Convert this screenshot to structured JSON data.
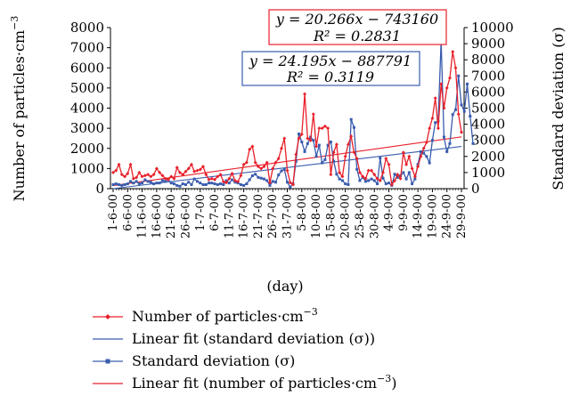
{
  "chart_data": {
    "type": "line",
    "xlabel": "(day)",
    "ylabel_left": "Number of particles·cm",
    "ylabel_left_sup": "−3",
    "ylabel_right": "Standard deviation (σ)",
    "ylim_left": [
      0,
      8000
    ],
    "ylim_right": [
      0,
      10000
    ],
    "yticks_left": [
      "0",
      "1000",
      "2000",
      "3000",
      "4000",
      "5000",
      "6000",
      "7000",
      "8000"
    ],
    "yticks_right": [
      "0",
      "1000",
      "2000",
      "3000",
      "4000",
      "5000",
      "6000",
      "7000",
      "8000",
      "9000",
      "10000"
    ],
    "xticks": [
      "1-6-00",
      "6-6-00",
      "11-6-00",
      "16-6-00",
      "21-6-00",
      "26-6-00",
      "1-7-00",
      "6-7-00",
      "11-7-00",
      "16-7-00",
      "21-7-00",
      "26-7-00",
      "31-7-00",
      "5-8-00",
      "10-8-00",
      "15-8-00",
      "20-8-00",
      "25-8-00",
      "30-8-00",
      "4-9-00",
      "9-9-00",
      "14-9-00",
      "19-9-00",
      "24-9-00",
      "29-9-00"
    ],
    "equations": {
      "red_line1": "y = 20.266x − 743160",
      "red_line2": "R² = 0.2831",
      "blue_line1": "y = 24.195x − 887791",
      "blue_line2": "R² = 0.3119"
    },
    "series": [
      {
        "name": "Number of particles·cm⁻³",
        "axis": "left",
        "color": "#e8202a",
        "values": [
          800,
          900,
          1200,
          700,
          600,
          750,
          1200,
          500,
          550,
          800,
          600,
          650,
          700,
          600,
          700,
          1000,
          800,
          650,
          500,
          450,
          600,
          500,
          1050,
          800,
          700,
          850,
          1000,
          1200,
          850,
          900,
          950,
          1100,
          700,
          450,
          500,
          450,
          600,
          700,
          350,
          300,
          500,
          750,
          400,
          350,
          650,
          1200,
          1300,
          1950,
          2100,
          1300,
          1100,
          1000,
          1100,
          1300,
          300,
          1000,
          1300,
          1500,
          2000,
          2500,
          900,
          300,
          200,
          1700,
          2500,
          2700,
          4700,
          2500,
          2400,
          3700,
          2100,
          3000,
          3000,
          3100,
          3000,
          700,
          1800,
          2200,
          800,
          600,
          1600,
          2200,
          2600,
          1800,
          1500,
          800,
          600,
          500,
          900,
          900,
          700,
          500,
          400,
          800,
          1500,
          1200,
          200,
          400,
          700,
          500,
          1800,
          1200,
          1600,
          1000,
          600,
          1100,
          1600,
          2000,
          2300,
          3000,
          3500,
          4500,
          3000,
          5200,
          4000,
          5000,
          5500,
          6800,
          6000,
          3700,
          2800
        ]
      },
      {
        "name": "Standard deviation (σ)",
        "axis": "right",
        "color": "#3a5cae",
        "values": [
          250,
          300,
          250,
          200,
          250,
          300,
          450,
          350,
          450,
          300,
          350,
          550,
          450,
          400,
          300,
          350,
          350,
          500,
          450,
          550,
          350,
          300,
          200,
          150,
          300,
          250,
          400,
          250,
          600,
          450,
          350,
          250,
          250,
          350,
          350,
          300,
          250,
          300,
          250,
          500,
          350,
          550,
          400,
          350,
          250,
          200,
          300,
          550,
          800,
          900,
          700,
          650,
          600,
          500,
          200,
          450,
          400,
          850,
          1100,
          1200,
          400,
          100,
          300,
          1700,
          3400,
          2900,
          2300,
          2800,
          3200,
          3000,
          2000,
          2700,
          1600,
          1800,
          2700,
          2900,
          1700,
          900,
          600,
          500,
          300,
          250,
          4300,
          3800,
          1200,
          500,
          700,
          450,
          500,
          600,
          500,
          300,
          1900,
          650,
          300,
          350,
          200,
          900,
          700,
          800,
          1000,
          600,
          1000,
          300,
          600,
          1500,
          2300,
          2200,
          2000,
          1600,
          3000,
          4100,
          4200,
          9200,
          3200,
          2300,
          2800,
          4600,
          4900,
          7000,
          5200,
          4800,
          6500,
          4500,
          2800
        ]
      },
      {
        "name": "Linear fit (standard deviation (σ))",
        "axis": "right",
        "color": "#3a5cae",
        "start": 0,
        "end": 2620
      },
      {
        "name": "Linear fit (number of particles·cm⁻³)",
        "axis": "left",
        "color": "#e8202a",
        "start": 150,
        "end": 2570
      }
    ],
    "legend": [
      {
        "label": "Number of particles·cm",
        "sup": "−3",
        "color": "#e8202a",
        "marker": "diamond"
      },
      {
        "label": "Linear fit (standard deviation (σ))",
        "sup": "",
        "color": "#3a5cae",
        "marker": "none"
      },
      {
        "label": "Standard deviation (σ)",
        "sup": "",
        "color": "#3a5cae",
        "marker": "square"
      },
      {
        "label": "Linear fit (number of particles·cm",
        "sup": "−3",
        "suffix": ")",
        "color": "#e8202a",
        "marker": "none"
      }
    ]
  }
}
